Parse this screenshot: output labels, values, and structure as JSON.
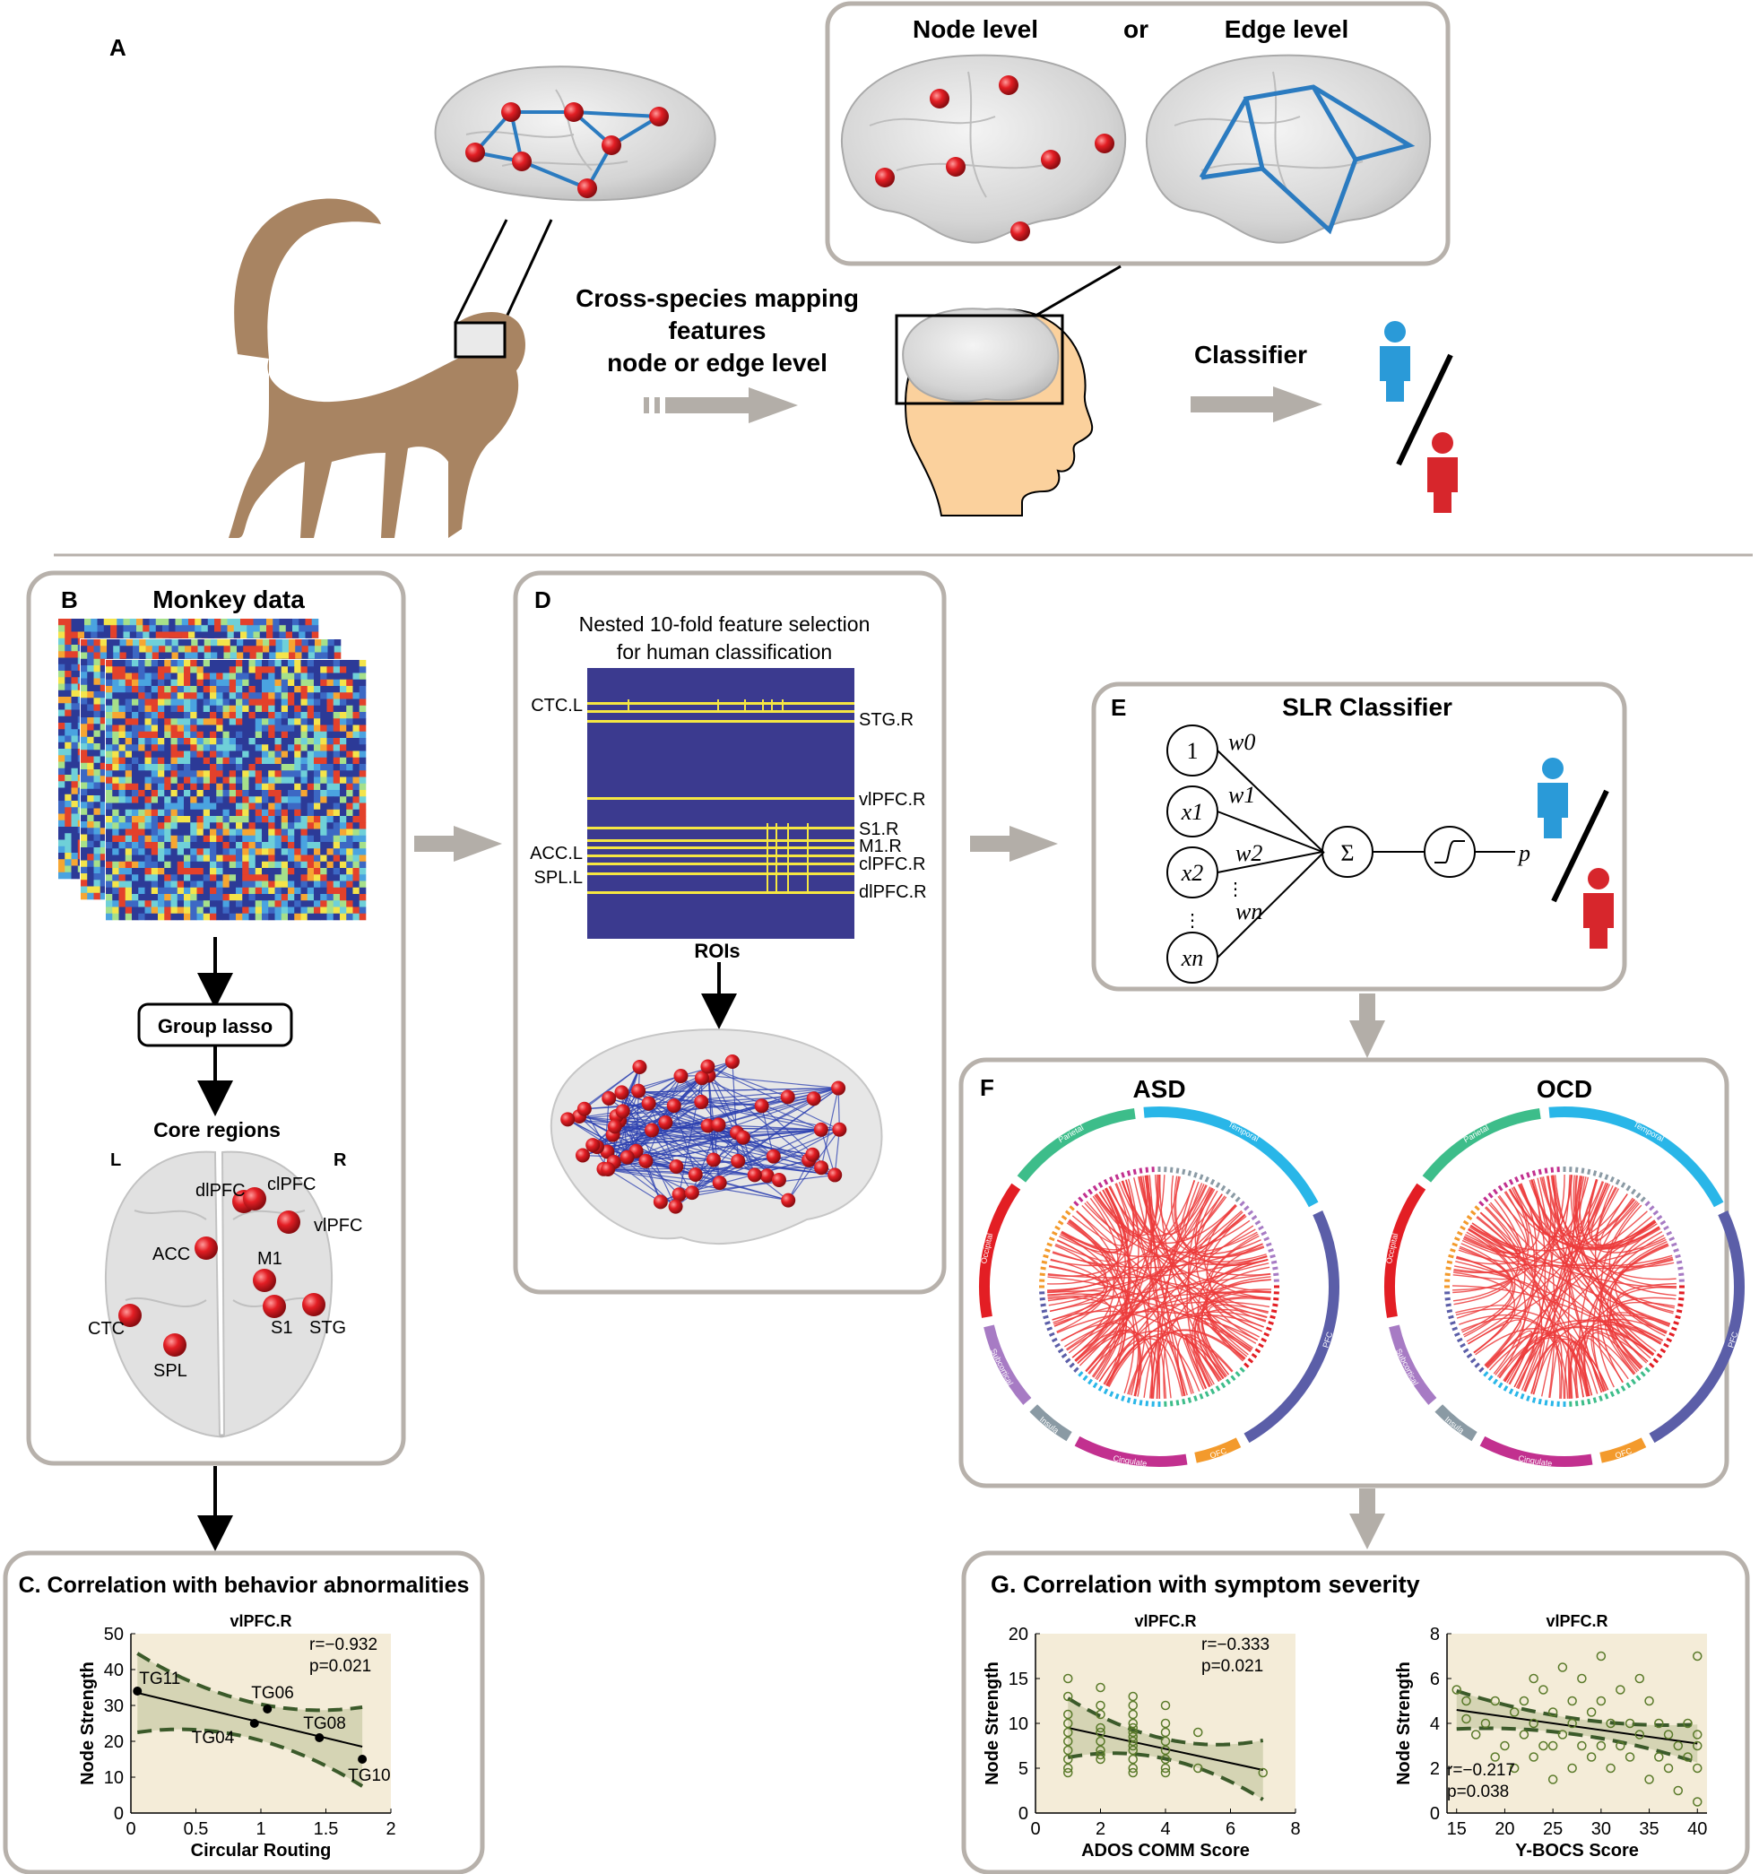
{
  "panelA": {
    "letter": "A",
    "node_level": "Node level",
    "or": "or",
    "edge_level": "Edge level",
    "mapping_line1": "Cross-species mapping",
    "mapping_line2": "features",
    "mapping_line3": "node or edge level",
    "classifier": "Classifier"
  },
  "panelB": {
    "letter": "B",
    "title": "Monkey data",
    "group_lasso": "Group lasso",
    "core_regions": "Core regions",
    "left": "L",
    "right": "R",
    "regions": [
      "dlPFC",
      "clPFC",
      "vlPFC",
      "ACC",
      "M1",
      "CTC",
      "S1",
      "STG",
      "SPL"
    ]
  },
  "panelC": {
    "title": "C. Correlation with behavior abnormalities",
    "chart_title": "vlPFC.R",
    "r_text": "r=−0.932",
    "p_text": "p=0.021",
    "xlabel": "Circular Routing",
    "ylabel": "Node Strength",
    "xticks": [
      "0",
      "0.5",
      "1",
      "1.5",
      "2"
    ],
    "yticks": [
      "0",
      "10",
      "20",
      "30",
      "40",
      "50"
    ],
    "point_labels": [
      "TG11",
      "TG04",
      "TG06",
      "TG08",
      "TG10"
    ]
  },
  "panelD": {
    "letter": "D",
    "title_line1": "Nested 10-fold feature selection",
    "title_line2": "for human classification",
    "left_labels": [
      "CTC.L",
      "ACC.L",
      "SPL.L"
    ],
    "right_labels": [
      "STG.R",
      "vlPFC.R",
      "S1.R",
      "M1.R",
      "clPFC.R",
      "dlPFC.R"
    ],
    "rois": "ROIs"
  },
  "panelE": {
    "letter": "E",
    "title": "SLR Classifier",
    "inputs": [
      "1",
      "x1",
      "x2",
      "xn"
    ],
    "weights": [
      "w0",
      "w1",
      "w2",
      "wn"
    ],
    "sum": "Σ",
    "output": "p"
  },
  "panelF": {
    "letter": "F",
    "asd": "ASD",
    "ocd": "OCD",
    "sectors": [
      "Occipital",
      "Parietal",
      "Temporal",
      "PFC",
      "OFC",
      "Cingulate",
      "Insula",
      "Subcortical"
    ]
  },
  "panelG": {
    "title": "G. Correlation with symptom severity",
    "left_title": "vlPFC.R",
    "left_r": "r=−0.333",
    "left_p": "p=0.021",
    "left_xlabel": "ADOS COMM Score",
    "left_ylabel": "Node Strength",
    "left_xticks": [
      "0",
      "2",
      "4",
      "6",
      "8"
    ],
    "left_yticks": [
      "0",
      "5",
      "10",
      "15",
      "20"
    ],
    "right_title": "vlPFC.R",
    "right_r": "r=−0.217",
    "right_p": "p=0.038",
    "right_xlabel": "Y-BOCS Score",
    "right_ylabel": "Node Strength",
    "right_xticks": [
      "15",
      "20",
      "25",
      "30",
      "35",
      "40"
    ],
    "right_yticks": [
      "0",
      "2",
      "4",
      "6",
      "8"
    ]
  },
  "colors": {
    "panel_border": "#b7b1ab",
    "node_red": "#e31e24",
    "edge_blue": "#2b7bc0",
    "arrow_grey": "#b3aea8",
    "monkey_brown": "#a88462",
    "head_skin": "#fbd19d",
    "person_blue": "#2a9ad8",
    "person_red": "#d7262c",
    "plot_bg": "#f4ecd8",
    "ci_green": "#3b5a2a",
    "matrix_bg": "#3b3a8f",
    "matrix_line": "#f5e642",
    "circos_red": "#ec3b3b"
  },
  "chart_data": [
    {
      "type": "scatter",
      "title": "vlPFC.R",
      "xlabel": "Circular Routing",
      "ylabel": "Node Strength",
      "xlim": [
        0,
        2
      ],
      "ylim": [
        0,
        50
      ],
      "points": [
        {
          "label": "TG11",
          "x": 0.05,
          "y": 34
        },
        {
          "label": "TG04",
          "x": 0.95,
          "y": 25
        },
        {
          "label": "TG06",
          "x": 1.05,
          "y": 29
        },
        {
          "label": "TG08",
          "x": 1.45,
          "y": 21
        },
        {
          "label": "TG10",
          "x": 1.78,
          "y": 15
        }
      ],
      "fit": {
        "x": [
          0.05,
          1.78
        ],
        "y": [
          33.5,
          18.5
        ]
      },
      "annotations": [
        "r=−0.932",
        "p=0.021"
      ]
    },
    {
      "type": "scatter",
      "title": "vlPFC.R",
      "xlabel": "ADOS COMM Score",
      "ylabel": "Node Strength",
      "xlim": [
        0,
        8
      ],
      "ylim": [
        0,
        20
      ],
      "x": [
        1,
        1,
        1,
        1,
        1,
        1,
        1,
        1,
        1,
        1,
        2,
        2,
        2,
        2,
        2,
        2,
        2,
        2,
        2,
        3,
        3,
        3,
        3,
        3,
        3,
        3,
        3,
        3,
        3,
        3,
        3,
        3,
        4,
        4,
        4,
        4,
        4,
        4,
        4,
        4,
        5,
        5,
        7
      ],
      "y": [
        15,
        13,
        11,
        10,
        9,
        8,
        7,
        6,
        5,
        4.5,
        14,
        12,
        11,
        9,
        8,
        7,
        6,
        6.5,
        9.5,
        13,
        12,
        11,
        10,
        9.5,
        9,
        8.5,
        8,
        7.5,
        7,
        6,
        5,
        4.5,
        12,
        10,
        9,
        8,
        7,
        6,
        5,
        4.5,
        9,
        5,
        4.5
      ],
      "fit": {
        "x": [
          1,
          7
        ],
        "y": [
          9.5,
          4.8
        ]
      },
      "annotations": [
        "r=−0.333",
        "p=0.021"
      ]
    },
    {
      "type": "scatter",
      "title": "vlPFC.R",
      "xlabel": "Y-BOCS Score",
      "ylabel": "Node Strength",
      "xlim": [
        14,
        41
      ],
      "ylim": [
        0,
        8
      ],
      "x": [
        15,
        16,
        16,
        17,
        18,
        19,
        19,
        20,
        21,
        21,
        22,
        22,
        23,
        23,
        23,
        24,
        24,
        25,
        25,
        25,
        26,
        26,
        27,
        27,
        27,
        28,
        28,
        29,
        29,
        30,
        30,
        30,
        31,
        31,
        32,
        32,
        33,
        33,
        34,
        34,
        35,
        35,
        36,
        36,
        37,
        37,
        38,
        38,
        39,
        39,
        40,
        40,
        40,
        40,
        40
      ],
      "y": [
        5.5,
        5,
        4.2,
        3.5,
        4,
        5,
        2.5,
        3,
        4.5,
        2,
        5,
        3.5,
        6,
        4,
        2.5,
        5.5,
        3,
        4.5,
        3,
        1.5,
        6.5,
        3.5,
        5,
        4,
        2,
        6,
        3,
        4.5,
        2.5,
        7,
        5,
        3,
        4,
        2,
        5.5,
        3,
        4,
        2.5,
        6,
        3.5,
        5,
        1.5,
        4,
        2.5,
        3.5,
        2,
        3,
        1,
        4,
        2.5,
        7,
        3.5,
        3,
        2,
        0.5
      ],
      "fit": {
        "x": [
          15,
          40
        ],
        "y": [
          4.6,
          3.1
        ]
      },
      "annotations": [
        "r=−0.217",
        "p=0.038"
      ]
    }
  ]
}
